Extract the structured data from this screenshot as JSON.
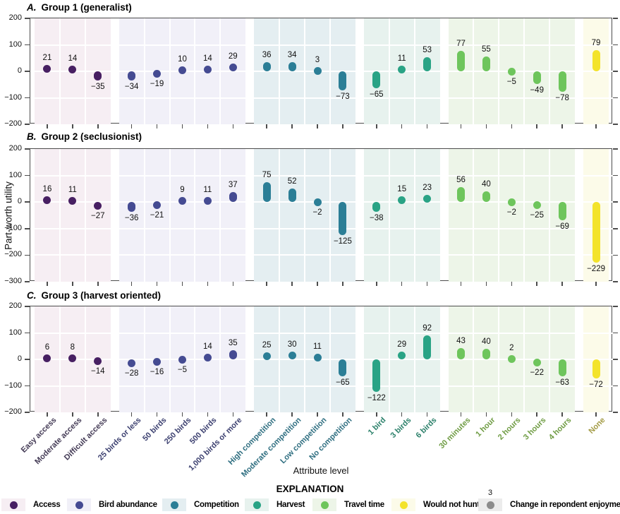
{
  "chart_data": {
    "type": "bar",
    "ylabel": "Part-worth utility",
    "xlabel": "Attribute level",
    "grid": true,
    "attribute_groups": [
      {
        "name": "Access",
        "bar_color": "#471f62",
        "band_color": "#f6eef3",
        "label_color": "#433a55",
        "categories": [
          "Easy access",
          "Moderate access",
          "Difficult access"
        ]
      },
      {
        "name": "Bird abundance",
        "bar_color": "#454b92",
        "band_color": "#f1f0f8",
        "label_color": "#3c4070",
        "categories": [
          "25 birds or less",
          "50 birds",
          "250 birds",
          "500 birds",
          "1,000 birds or more"
        ]
      },
      {
        "name": "Competition",
        "bar_color": "#2b7e96",
        "band_color": "#e4eef1",
        "label_color": "#2e6e80",
        "categories": [
          "High competition",
          "Moderate competition",
          "Low competition",
          "No competition"
        ]
      },
      {
        "name": "Harvest",
        "bar_color": "#29a385",
        "band_color": "#e7f2ee",
        "label_color": "#2b806a",
        "categories": [
          "1 bird",
          "3 birds",
          "6 birds"
        ]
      },
      {
        "name": "Travel time",
        "bar_color": "#6ec55c",
        "band_color": "#edf5e8",
        "label_color": "#6f9c43",
        "categories": [
          "30 minutes",
          "1 hour",
          "2 hours",
          "3 hours",
          "4 hours"
        ]
      },
      {
        "name": "Would not hunt",
        "bar_color": "#f3e32b",
        "band_color": "#fcfbe9",
        "label_color": "#a39b45",
        "categories": [
          "None"
        ]
      }
    ],
    "panels": [
      {
        "label": "A.",
        "title": "Group 1 (generalist)",
        "ylim": [
          -200,
          200
        ],
        "yticks": [
          200,
          100,
          0,
          -100,
          -200
        ],
        "values": [
          [
            21,
            14,
            -35
          ],
          [
            -34,
            -19,
            10,
            14,
            29
          ],
          [
            36,
            34,
            3,
            -73
          ],
          [
            -65,
            11,
            53
          ],
          [
            77,
            55,
            -5,
            -49,
            -78
          ],
          [
            79
          ]
        ]
      },
      {
        "label": "B.",
        "title": "Group 2 (seclusionist)",
        "ylim": [
          -300,
          200
        ],
        "yticks": [
          200,
          100,
          0,
          -100,
          -200,
          -300
        ],
        "values": [
          [
            16,
            11,
            -27
          ],
          [
            -36,
            -21,
            9,
            11,
            37
          ],
          [
            75,
            52,
            -2,
            -125
          ],
          [
            -38,
            15,
            23
          ],
          [
            56,
            40,
            -2,
            -25,
            -69
          ],
          [
            -229
          ]
        ]
      },
      {
        "label": "C.",
        "title": "Group 3 (harvest oriented)",
        "ylim": [
          -200,
          200
        ],
        "yticks": [
          200,
          100,
          0,
          -100,
          -200
        ],
        "values": [
          [
            6,
            8,
            -14
          ],
          [
            -28,
            -16,
            -5,
            14,
            35
          ],
          [
            25,
            30,
            11,
            -65
          ],
          [
            -122,
            29,
            92
          ],
          [
            43,
            40,
            2,
            -22,
            -63
          ],
          [
            -72
          ]
        ]
      }
    ],
    "legend": {
      "title": "EXPLANATION",
      "change_marker": {
        "label": "Change in repondent enjoyment",
        "example_value": "3",
        "dot_color": "#8c8c8c",
        "band_color": "#ececec"
      }
    }
  },
  "colors": {
    "plot_border": "#4c4c4c",
    "grid": "#ffffff",
    "text": "#111111"
  }
}
